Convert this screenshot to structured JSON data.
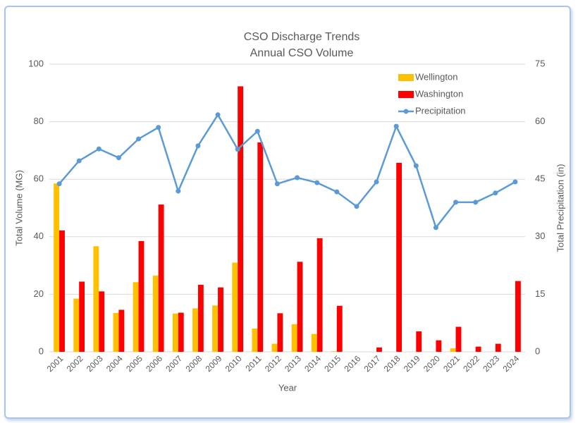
{
  "chart_data": {
    "type": "bar",
    "title": "CSO Discharge Trends",
    "subtitle": "Annual CSO Volume",
    "x_label": "Year",
    "y_label": "Total Volume (MG)",
    "y2_label": "Total Precipitation (in)",
    "categories": [
      "2001",
      "2002",
      "2003",
      "2004",
      "2005",
      "2006",
      "2007",
      "2008",
      "2009",
      "2010",
      "2011",
      "2012",
      "2013",
      "2014",
      "2015",
      "2016",
      "2017",
      "2018",
      "2019",
      "2020",
      "2021",
      "2022",
      "2023",
      "2024"
    ],
    "series": [
      {
        "name": "Wellington",
        "color": "#ffc000",
        "values": [
          58.5,
          18.5,
          36.7,
          13.5,
          24.2,
          26.5,
          13.3,
          15.1,
          16.1,
          31.0,
          8.1,
          2.8,
          9.6,
          6.2,
          0.2,
          0,
          0,
          0,
          0,
          0,
          1.2,
          0,
          0,
          0
        ]
      },
      {
        "name": "Washington",
        "color": "#ff0000",
        "values": [
          42.2,
          24.4,
          21.0,
          14.6,
          38.5,
          51.2,
          13.6,
          23.3,
          22.4,
          92.3,
          72.8,
          13.4,
          31.3,
          39.5,
          16.0,
          0,
          1.5,
          65.7,
          7.1,
          4.0,
          8.7,
          1.8,
          2.8,
          24.6
        ]
      },
      {
        "name": "Precipitation",
        "color": "#5b9bd5",
        "type": "line",
        "axis": "y2",
        "values": [
          43.8,
          49.8,
          52.9,
          50.6,
          55.5,
          58.5,
          41.9,
          53.7,
          61.8,
          52.8,
          57.5,
          43.8,
          45.4,
          44.1,
          41.7,
          37.9,
          44.3,
          58.8,
          48.5,
          32.4,
          39.0,
          39.0,
          41.4,
          44.3
        ]
      }
    ],
    "ylim": [
      0,
      100
    ],
    "yticks": [
      0,
      20,
      40,
      60,
      80,
      100
    ],
    "y2lim": [
      0,
      75
    ],
    "y2ticks": [
      0,
      15,
      30,
      45,
      60,
      75
    ],
    "grid": true,
    "legend": "top-right"
  }
}
